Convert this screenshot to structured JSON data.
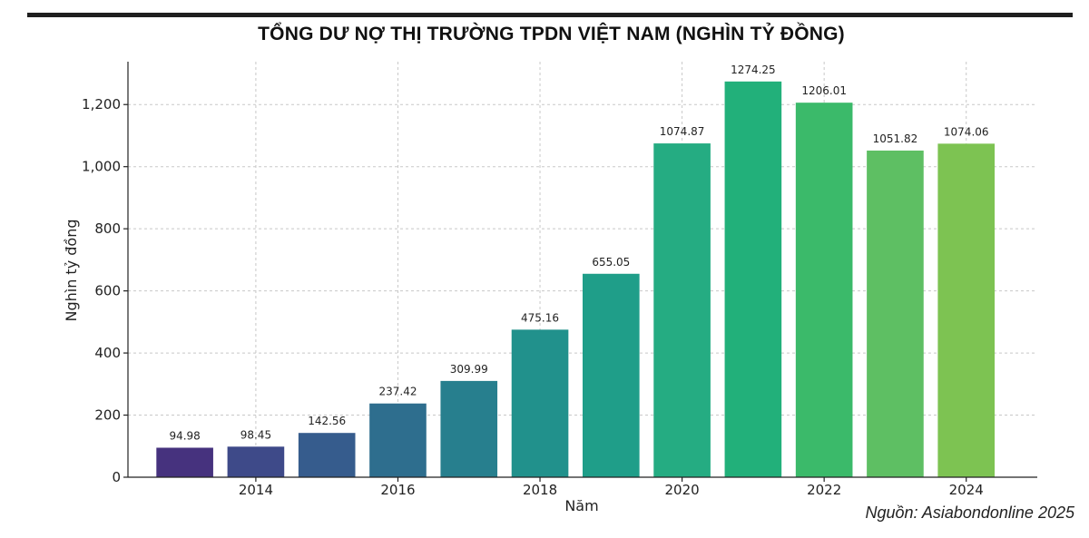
{
  "title": "TỔNG DƯ NỢ THỊ TRƯỜNG TPDN VIỆT NAM (NGHÌN TỶ ĐỒNG)",
  "source": "Nguồn: Asiabondonline 2025",
  "chart_data": {
    "type": "bar",
    "title": "TỔNG DƯ NỢ THỊ TRƯỜNG TPDN VIỆT NAM (NGHÌN TỶ ĐỒNG)",
    "xlabel": "Năm",
    "ylabel": "Nghìn tỷ đồng",
    "categories": [
      2013,
      2014,
      2015,
      2016,
      2017,
      2018,
      2019,
      2020,
      2021,
      2022,
      2023,
      2024
    ],
    "values": [
      94.98,
      98.45,
      142.56,
      237.42,
      309.99,
      475.16,
      655.05,
      1074.87,
      1274.25,
      1206.01,
      1051.82,
      1074.06
    ],
    "value_labels": [
      "94.98",
      "98.45",
      "142.56",
      "237.42",
      "309.99",
      "475.16",
      "655.05",
      "1074.87",
      "1274.25",
      "1206.01",
      "1051.82",
      "1074.06"
    ],
    "x_ticks": [
      2014,
      2016,
      2018,
      2020,
      2022,
      2024
    ],
    "x_tick_labels": [
      "2014",
      "2016",
      "2018",
      "2020",
      "2022",
      "2024"
    ],
    "y_ticks": [
      0,
      200,
      400,
      600,
      800,
      1000,
      1200
    ],
    "y_tick_labels": [
      "0",
      "200",
      "400",
      "600",
      "800",
      "1,000",
      "1,200"
    ],
    "xlim": [
      2012.2,
      2025
    ],
    "ylim": [
      0,
      1338
    ],
    "grid": true,
    "bar_colors": [
      "#46327e",
      "#3e4a89",
      "#365c8d",
      "#2e6e8e",
      "#277f8e",
      "#21918c",
      "#1f9e89",
      "#25ac82",
      "#22b07a",
      "#3bba6a",
      "#5ebf63",
      "#7dc352"
    ]
  }
}
